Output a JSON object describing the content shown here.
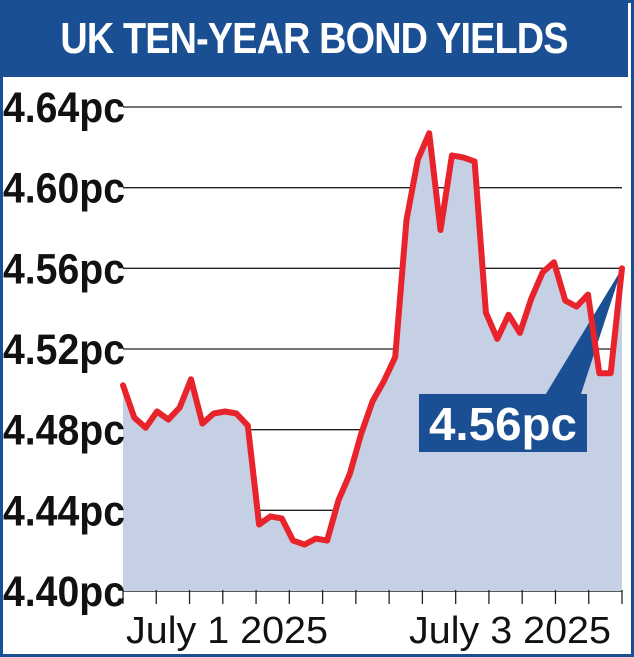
{
  "title": "UK TEN-YEAR BOND YIELDS",
  "callout": "4.56pc",
  "colors": {
    "brand_blue": "#1b4f93",
    "line_red": "#e8232b",
    "area_fill": "#c5d0e4"
  },
  "chart_data": {
    "type": "area",
    "title": "UK TEN-YEAR BOND YIELDS",
    "xlabel": "",
    "ylabel": "",
    "ylim": [
      4.4,
      4.64
    ],
    "yticks": [
      4.4,
      4.44,
      4.48,
      4.52,
      4.56,
      4.6,
      4.64
    ],
    "ytick_labels": [
      "4.40pc",
      "4.44pc",
      "4.48pc",
      "4.52pc",
      "4.56pc",
      "4.60pc",
      "4.64pc"
    ],
    "x_labels": [
      "July 1 2025",
      "July 3 2025"
    ],
    "grid": true,
    "annotation": "4.56pc",
    "series": [
      {
        "values": [
          4.502,
          4.486,
          4.481,
          4.489,
          4.485,
          4.491,
          4.505,
          4.483,
          4.488,
          4.489,
          4.488,
          4.482,
          4.433,
          4.437,
          4.436,
          4.425,
          4.423,
          4.426,
          4.425,
          4.445,
          4.458,
          4.478,
          4.494,
          4.504,
          4.516,
          4.584,
          4.614,
          4.627,
          4.579,
          4.616,
          4.615,
          4.613,
          4.538,
          4.525,
          4.537,
          4.528,
          4.545,
          4.558,
          4.563,
          4.544,
          4.541,
          4.547,
          4.508,
          4.508,
          4.56
        ]
      }
    ]
  }
}
